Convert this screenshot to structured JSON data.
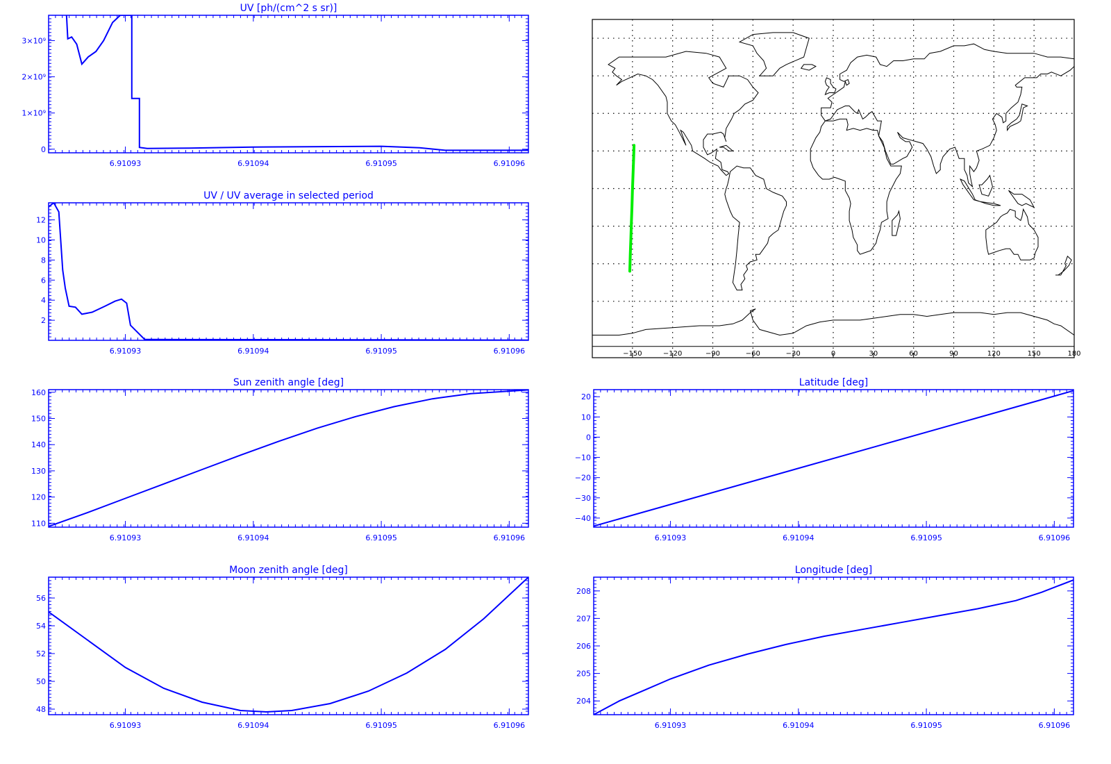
{
  "colors": {
    "axis": "#0000ff",
    "line": "#0000ff",
    "track": "#00ee00",
    "map": "#000000",
    "background": "#ffffff"
  },
  "chart_data": [
    {
      "id": "uv",
      "type": "line",
      "title": "UV [ph/(cm^2 s sr)]",
      "xlabel": "",
      "ylabel": "",
      "xlim": [
        6.910924,
        6.9109615
      ],
      "ylim": [
        -100000000,
        3700000000
      ],
      "x_ticks": [
        6.91093,
        6.91094,
        6.91095,
        6.91096
      ],
      "x_tick_labels": [
        "6.91093",
        "6.91094",
        "6.91095",
        "6.91096"
      ],
      "y_ticks": [
        0,
        1000000000,
        2000000000,
        3000000000
      ],
      "y_tick_labels": [
        "0",
        "1×10⁹",
        "2×10⁹",
        "3×10⁹"
      ],
      "series": [
        {
          "x": [
            6.9109254,
            6.9109255,
            6.9109258,
            6.9109262,
            6.9109266,
            6.9109271,
            6.9109277,
            6.9109283,
            6.910929,
            6.9109296,
            6.9109302,
            6.9109305,
            6.9109305,
            6.9109311,
            6.9109311,
            6.9109317,
            6.910935,
            6.91094,
            6.91095,
            6.910953,
            6.910955,
            6.9109615
          ],
          "y": [
            3700000000,
            3050000000,
            3100000000,
            2900000000,
            2350000000,
            2550000000,
            2700000000,
            3000000000,
            3500000000,
            3700000000,
            3700000000,
            3700000000,
            1400000000,
            1400000000,
            50000000,
            20000000,
            30000000,
            60000000,
            80000000,
            40000000,
            -30000000,
            -30000000
          ]
        }
      ]
    },
    {
      "id": "ratio",
      "type": "line",
      "title": "UV / UV average in selected period",
      "xlabel": "",
      "ylabel": "",
      "xlim": [
        6.910924,
        6.9109615
      ],
      "ylim": [
        0,
        13.7
      ],
      "x_ticks": [
        6.91093,
        6.91094,
        6.91095,
        6.91096
      ],
      "x_tick_labels": [
        "6.91093",
        "6.91094",
        "6.91095",
        "6.91096"
      ],
      "y_ticks": [
        2,
        4,
        6,
        8,
        10,
        12
      ],
      "y_tick_labels": [
        "2",
        "4",
        "6",
        "8",
        "10",
        "12"
      ],
      "series": [
        {
          "x": [
            6.910924,
            6.9109244,
            6.9109248,
            6.9109251,
            6.9109253,
            6.9109256,
            6.9109261,
            6.9109266,
            6.9109274,
            6.9109284,
            6.9109292,
            6.9109297,
            6.9109301,
            6.9109304,
            6.9109315,
            6.910932,
            6.91095,
            6.9109615
          ],
          "y": [
            13.3,
            13.7,
            12.8,
            7.0,
            5.2,
            3.4,
            3.3,
            2.6,
            2.8,
            3.4,
            3.9,
            4.1,
            3.7,
            1.5,
            0.1,
            0.08,
            0.05,
            0.02
          ]
        }
      ]
    },
    {
      "id": "sza",
      "type": "line",
      "title": "Sun zenith angle [deg]",
      "xlabel": "",
      "ylabel": "",
      "xlim": [
        6.910924,
        6.9109615
      ],
      "ylim": [
        108.5,
        161.0
      ],
      "x_ticks": [
        6.91093,
        6.91094,
        6.91095,
        6.91096
      ],
      "x_tick_labels": [
        "6.91093",
        "6.91094",
        "6.91095",
        "6.91096"
      ],
      "y_ticks": [
        110,
        120,
        130,
        140,
        150,
        160
      ],
      "y_tick_labels": [
        "110",
        "120",
        "130",
        "140",
        "150",
        "160"
      ],
      "series": [
        {
          "x": [
            6.910924,
            6.910927,
            6.91093,
            6.910933,
            6.910936,
            6.910939,
            6.910942,
            6.910945,
            6.910948,
            6.910951,
            6.910954,
            6.910957,
            6.9109615
          ],
          "y": [
            108.8,
            114.0,
            119.5,
            125.0,
            130.5,
            136.0,
            141.3,
            146.3,
            150.7,
            154.5,
            157.5,
            159.5,
            160.9
          ]
        }
      ]
    },
    {
      "id": "lat",
      "type": "line",
      "title": "Latitude [deg]",
      "xlabel": "",
      "ylabel": "",
      "xlim": [
        6.910924,
        6.9109615
      ],
      "ylim": [
        -44.5,
        23.5
      ],
      "x_ticks": [
        6.91093,
        6.91094,
        6.91095,
        6.91096
      ],
      "x_tick_labels": [
        "6.91093",
        "6.91094",
        "6.91095",
        "6.91096"
      ],
      "y_ticks": [
        -40,
        -30,
        -20,
        -10,
        0,
        10,
        20
      ],
      "y_tick_labels": [
        "−40",
        "−30",
        "−20",
        "−10",
        "0",
        "10",
        "20"
      ],
      "series": [
        {
          "x": [
            6.910924,
            6.9109615
          ],
          "y": [
            -44.0,
            23.0
          ]
        }
      ]
    },
    {
      "id": "mza",
      "type": "line",
      "title": "Moon zenith angle [deg]",
      "xlabel": "",
      "ylabel": "",
      "xlim": [
        6.910924,
        6.9109615
      ],
      "ylim": [
        47.6,
        57.5
      ],
      "x_ticks": [
        6.91093,
        6.91094,
        6.91095,
        6.91096
      ],
      "x_tick_labels": [
        "6.91093",
        "6.91094",
        "6.91095",
        "6.91096"
      ],
      "y_ticks": [
        48,
        50,
        52,
        54,
        56
      ],
      "y_tick_labels": [
        "48",
        "50",
        "52",
        "54",
        "56"
      ],
      "series": [
        {
          "x": [
            6.910924,
            6.910927,
            6.91093,
            6.910933,
            6.910936,
            6.910939,
            6.910941,
            6.910943,
            6.910946,
            6.910949,
            6.910952,
            6.910955,
            6.910958,
            6.9109615
          ],
          "y": [
            55.0,
            53.0,
            51.0,
            49.5,
            48.5,
            47.9,
            47.8,
            47.9,
            48.4,
            49.3,
            50.6,
            52.3,
            54.5,
            57.5
          ]
        }
      ]
    },
    {
      "id": "lon",
      "type": "line",
      "title": "Longitude [deg]",
      "xlabel": "",
      "ylabel": "",
      "xlim": [
        6.910924,
        6.9109615
      ],
      "ylim": [
        203.5,
        208.5
      ],
      "x_ticks": [
        6.91093,
        6.91094,
        6.91095,
        6.91096
      ],
      "x_tick_labels": [
        "6.91093",
        "6.91094",
        "6.91095",
        "6.91096"
      ],
      "y_ticks": [
        204,
        205,
        206,
        207,
        208
      ],
      "y_tick_labels": [
        "204",
        "205",
        "206",
        "207",
        "208"
      ],
      "series": [
        {
          "x": [
            6.910924,
            6.910926,
            6.910928,
            6.91093,
            6.910933,
            6.910936,
            6.910939,
            6.910942,
            6.910945,
            6.910948,
            6.910951,
            6.910954,
            6.910957,
            6.910959,
            6.9109615
          ],
          "y": [
            203.5,
            204.0,
            204.4,
            204.8,
            205.3,
            205.7,
            206.05,
            206.35,
            206.6,
            206.85,
            207.1,
            207.35,
            207.65,
            207.95,
            208.4
          ]
        }
      ]
    },
    {
      "id": "map",
      "type": "map",
      "title": "",
      "xlim": [
        -180,
        180
      ],
      "ylim": [
        -90,
        90
      ],
      "x_ticks": [
        -150,
        -120,
        -90,
        -60,
        -30,
        0,
        30,
        60,
        90,
        120,
        150,
        180
      ],
      "x_tick_labels": [
        "−150",
        "−120",
        "−90",
        "−60",
        "−30",
        "0",
        "30",
        "60",
        "90",
        "120",
        "150",
        "180"
      ],
      "grid": true,
      "track": {
        "lon": [
          -152,
          -151.6,
          -151.2,
          -150.8,
          -150.4,
          -150.0,
          -149.6,
          -149.2,
          -148.8
        ],
        "lat": [
          -44,
          -35,
          -27,
          -18,
          -10,
          -1,
          7,
          15,
          23
        ]
      }
    }
  ]
}
